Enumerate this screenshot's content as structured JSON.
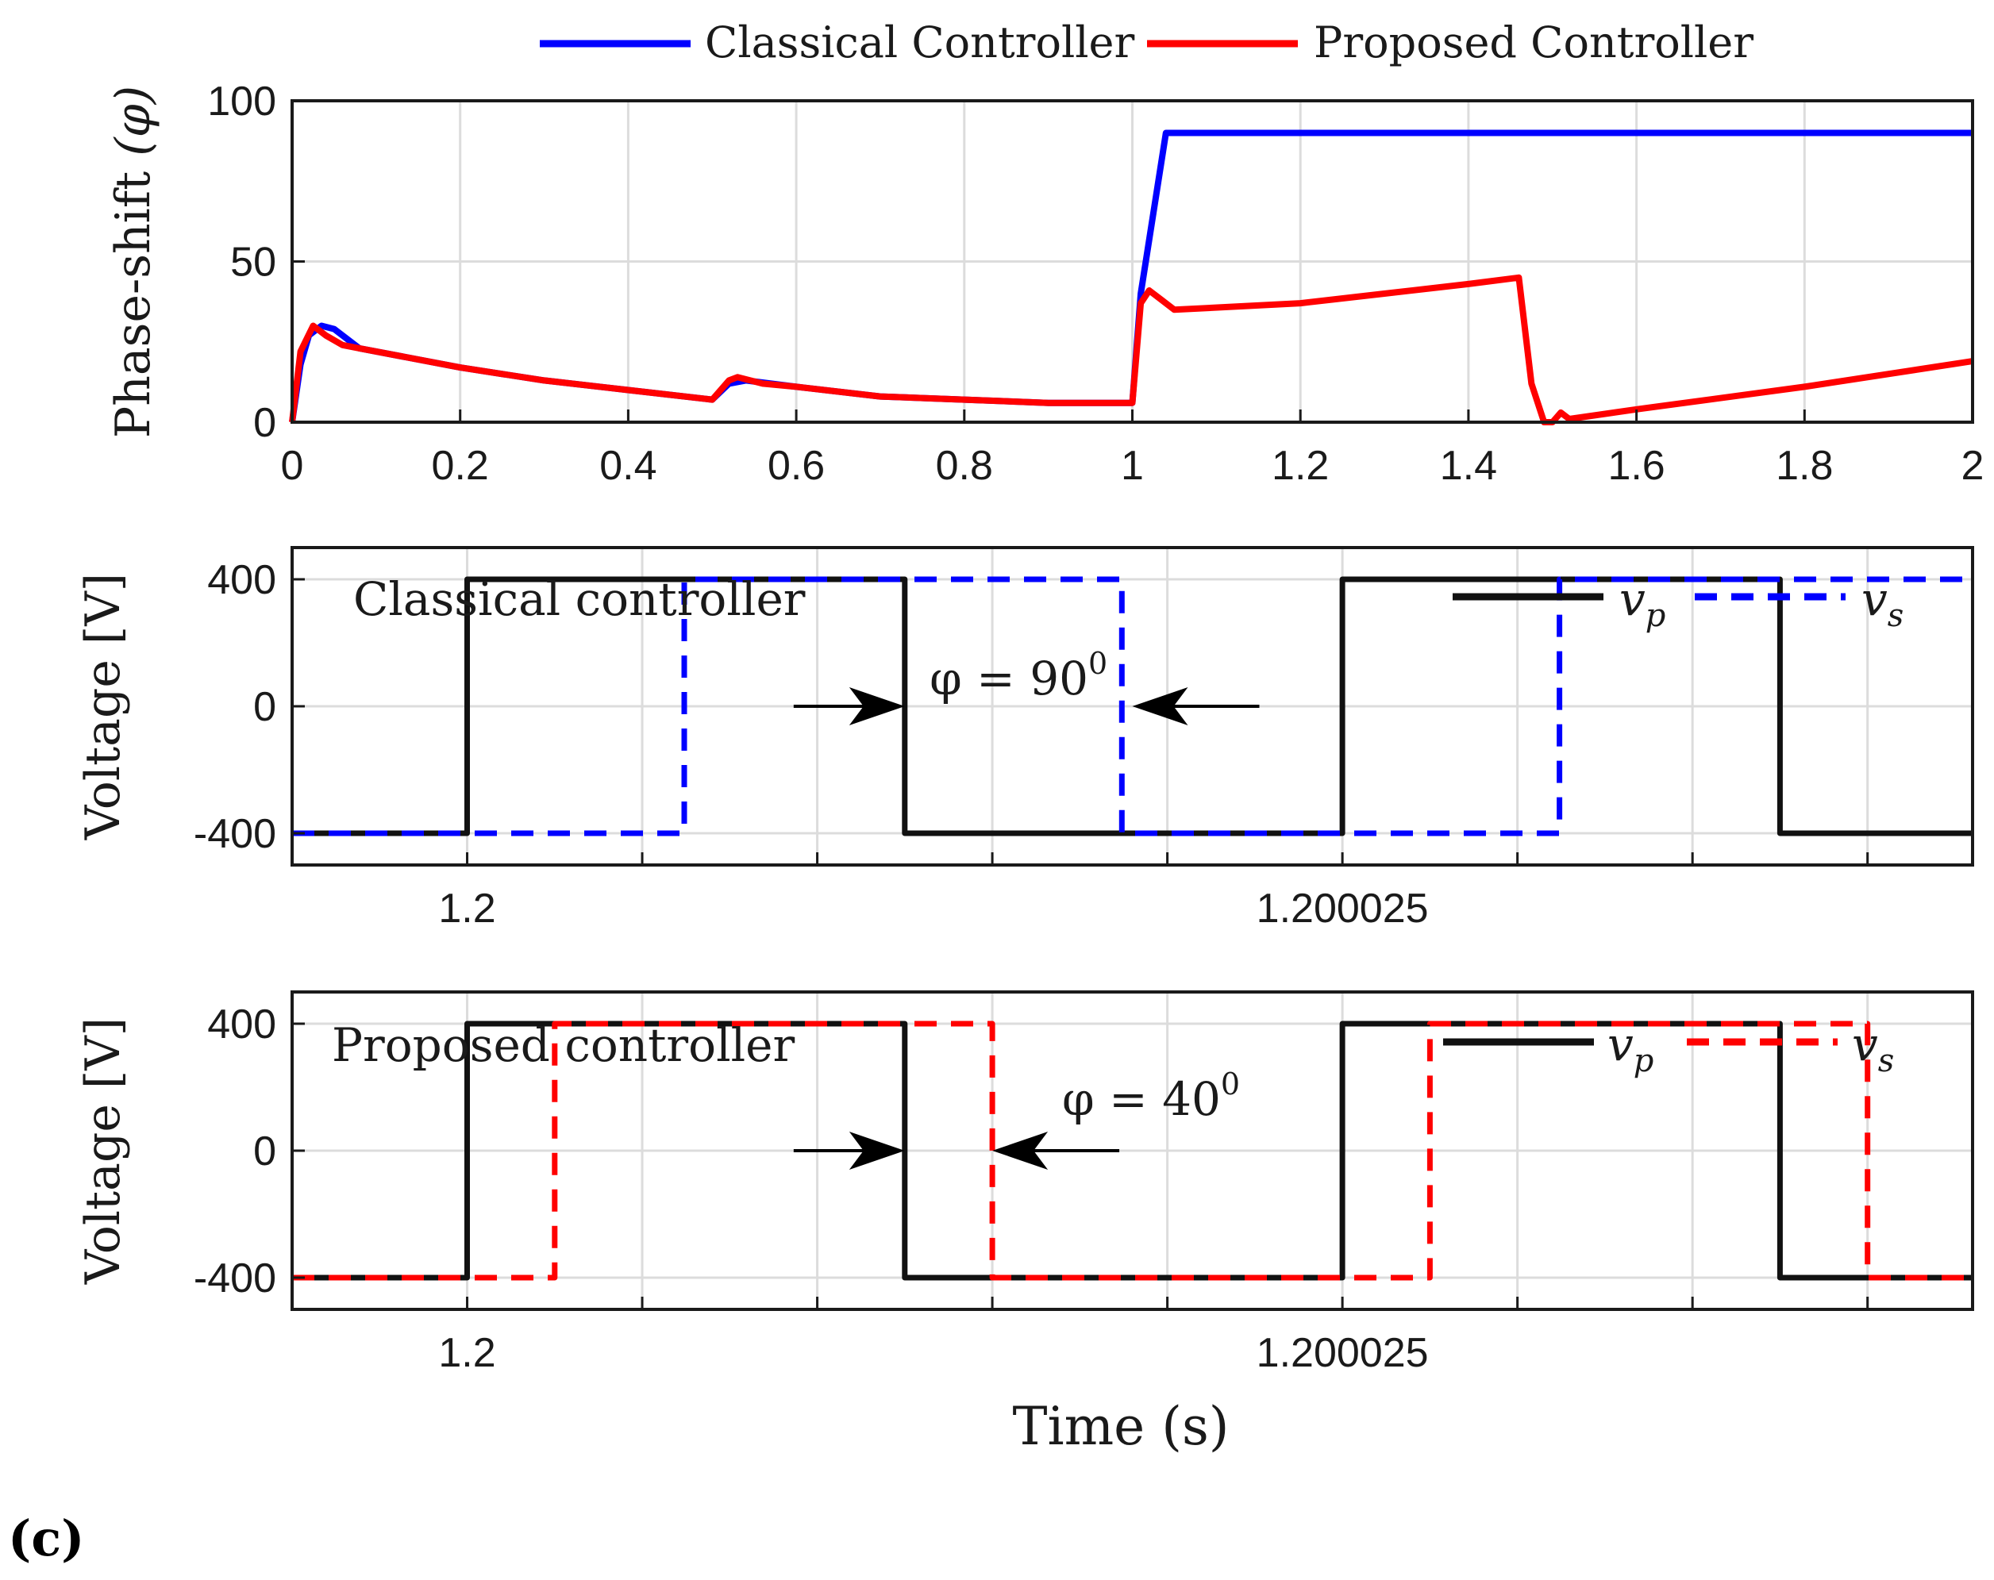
{
  "figure_label": "(c)",
  "colors": {
    "classical": "#0000ff",
    "proposed": "#ff0000",
    "black": "#111111"
  },
  "chart_data": [
    {
      "type": "line",
      "id": "phase",
      "title": "",
      "xlabel": "",
      "ylabel_main": "Phase-shift",
      "ylabel_sym": "(φ)",
      "xlim": [
        0,
        2
      ],
      "ylim": [
        0,
        100
      ],
      "xticks": [
        0,
        0.2,
        0.4,
        0.6,
        0.8,
        1,
        1.2,
        1.4,
        1.6,
        1.8,
        2
      ],
      "xtick_labels": [
        "0",
        "0.2",
        "0.4",
        "0.6",
        "0.8",
        "1",
        "1.2",
        "1.4",
        "1.6",
        "1.8",
        "2"
      ],
      "yticks": [
        0,
        50,
        100
      ],
      "ytick_labels": [
        "0",
        "50",
        "100"
      ],
      "legend": {
        "placement": "top-outside",
        "entries": [
          "Classical Controller",
          "Proposed Controller"
        ]
      },
      "series": [
        {
          "name": "Classical Controller",
          "color": "#0000ff",
          "x": [
            0,
            0.01,
            0.02,
            0.035,
            0.05,
            0.08,
            0.2,
            0.3,
            0.4,
            0.5,
            0.52,
            0.54,
            0.6,
            0.7,
            0.8,
            0.9,
            1.0,
            1.01,
            1.04,
            1.3,
            1.6,
            2.0
          ],
          "y": [
            0,
            18,
            27,
            30,
            29,
            23,
            17,
            13,
            10,
            7,
            12,
            13,
            11,
            8,
            7,
            6,
            6,
            40,
            90,
            90,
            90,
            90
          ]
        },
        {
          "name": "Proposed Controller",
          "color": "#ff0000",
          "x": [
            0,
            0.01,
            0.025,
            0.04,
            0.06,
            0.08,
            0.2,
            0.3,
            0.4,
            0.5,
            0.52,
            0.53,
            0.56,
            0.6,
            0.7,
            0.8,
            0.9,
            1.0,
            1.01,
            1.02,
            1.035,
            1.05,
            1.2,
            1.3,
            1.4,
            1.46,
            1.475,
            1.49,
            1.5,
            1.51,
            1.52,
            1.6,
            1.8,
            2.0
          ],
          "y": [
            0,
            22,
            30,
            27,
            24,
            23,
            17,
            13,
            10,
            7,
            13,
            14,
            12,
            11,
            8,
            7,
            6,
            6,
            37,
            41,
            38,
            35,
            37,
            40,
            43,
            45,
            12,
            0,
            0,
            3,
            1,
            4,
            11,
            19
          ]
        }
      ]
    },
    {
      "type": "line",
      "id": "classical",
      "annotation_title": "Classical controller",
      "ylabel": "Voltage [V]",
      "xlim": [
        1.199995,
        1.200043
      ],
      "ylim": [
        -500,
        500
      ],
      "yticks": [
        -400,
        0,
        400
      ],
      "ytick_labels": [
        "-400",
        "0",
        "400"
      ],
      "xgrid": [
        1.2,
        1.200005,
        1.20001,
        1.200015,
        1.20002,
        1.200025,
        1.20003,
        1.200035,
        1.20004
      ],
      "xtick_values": [
        1.2,
        1.200025
      ],
      "xtick_labels": [
        "1.2",
        "1.200025"
      ],
      "legend": {
        "placement": "top-right",
        "entries": [
          "v_p",
          "v_s"
        ],
        "sub": [
          "p",
          "s"
        ]
      },
      "phase_annotation": {
        "label": "φ = 90",
        "sup": "0",
        "from": 1.2000125,
        "to": 1.200019
      },
      "series": [
        {
          "name": "v_p",
          "style": "solid",
          "color": "#111111",
          "x": [
            1.199995,
            1.2,
            1.2,
            1.2000125,
            1.2000125,
            1.200025,
            1.200025,
            1.2000375,
            1.2000375,
            1.200043
          ],
          "y": [
            -400,
            -400,
            400,
            400,
            -400,
            -400,
            400,
            400,
            -400,
            -400
          ]
        },
        {
          "name": "v_s",
          "style": "dashed",
          "color": "#0000ff",
          "x": [
            1.199995,
            1.2000062,
            1.2000062,
            1.2000187,
            1.2000187,
            1.2000312,
            1.2000312,
            1.200043
          ],
          "y": [
            -400,
            -400,
            400,
            400,
            -400,
            -400,
            400,
            400
          ]
        }
      ]
    },
    {
      "type": "line",
      "id": "proposed",
      "annotation_title": "Proposed controller",
      "ylabel": "Voltage [V]",
      "xlabel": "Time (s)",
      "xlim": [
        1.199995,
        1.200043
      ],
      "ylim": [
        -500,
        500
      ],
      "yticks": [
        -400,
        0,
        400
      ],
      "ytick_labels": [
        "-400",
        "0",
        "400"
      ],
      "xgrid": [
        1.2,
        1.200005,
        1.20001,
        1.200015,
        1.20002,
        1.200025,
        1.20003,
        1.200035,
        1.20004
      ],
      "xtick_values": [
        1.2,
        1.200025
      ],
      "xtick_labels": [
        "1.2",
        "1.200025"
      ],
      "legend": {
        "placement": "top-right",
        "entries": [
          "v_p",
          "v_s"
        ],
        "sub": [
          "p",
          "s"
        ]
      },
      "phase_annotation": {
        "label": "φ = 40",
        "sup": "0",
        "from": 1.2000125,
        "to": 1.200015
      },
      "series": [
        {
          "name": "v_p",
          "style": "solid",
          "color": "#111111",
          "x": [
            1.199995,
            1.2,
            1.2,
            1.2000125,
            1.2000125,
            1.200025,
            1.200025,
            1.2000375,
            1.2000375,
            1.200043
          ],
          "y": [
            -400,
            -400,
            400,
            400,
            -400,
            -400,
            400,
            400,
            -400,
            -400
          ]
        },
        {
          "name": "v_s",
          "style": "dashed",
          "color": "#ff0000",
          "x": [
            1.199995,
            1.2000025,
            1.2000025,
            1.200015,
            1.200015,
            1.2000275,
            1.2000275,
            1.20004,
            1.20004,
            1.200043
          ],
          "y": [
            -400,
            -400,
            400,
            400,
            -400,
            -400,
            400,
            400,
            -400,
            -400
          ]
        }
      ]
    }
  ]
}
